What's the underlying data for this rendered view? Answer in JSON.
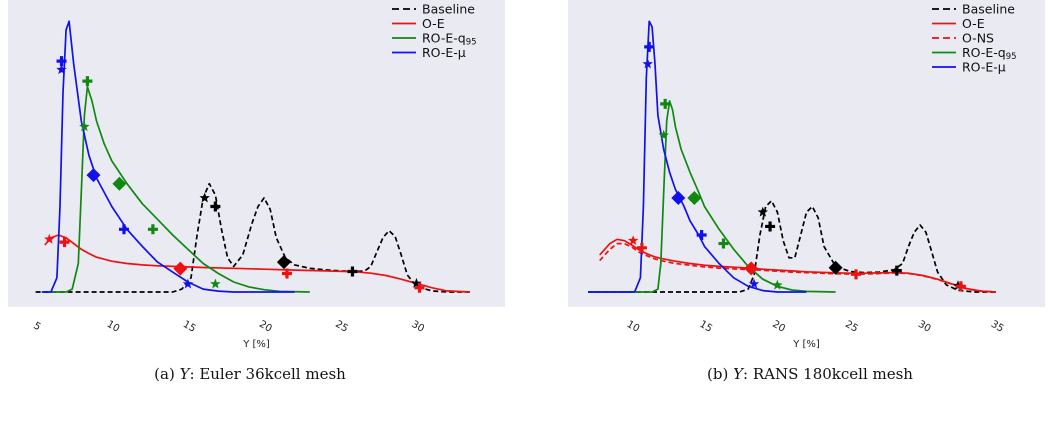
{
  "colors": {
    "background": "#eaeaf2",
    "baseline": "#000000",
    "oe": "#ee1111",
    "onse": "#ee1111",
    "q95": "#118811",
    "mu": "#1111ee"
  },
  "chart_data": [
    {
      "type": "line",
      "caption_prefix": "(a)",
      "caption_var": "Y",
      "caption_text": ": Euler 36kcell mesh",
      "xlabel": "Y [%]",
      "ylabel": "",
      "xlim": [
        4.5,
        34.5
      ],
      "ylim": [
        0,
        1.0
      ],
      "xticks": [
        5,
        10,
        15,
        20,
        25,
        30
      ],
      "grid": false,
      "legend_position": "top-right",
      "series": [
        {
          "name": "Baseline",
          "key": "baseline",
          "dash": "dash",
          "x": [
            5,
            10,
            14,
            14.6,
            15.2,
            15.6,
            16,
            16.4,
            16.8,
            17.2,
            17.6,
            18,
            18.6,
            19.2,
            19.6,
            20,
            20.4,
            20.8,
            21.4,
            22,
            23,
            24,
            25,
            26,
            26.6,
            27,
            27.4,
            27.8,
            28.2,
            28.6,
            29,
            29.4,
            30,
            31,
            32,
            33.5
          ],
          "y": [
            0,
            0,
            0,
            0.01,
            0.05,
            0.2,
            0.33,
            0.38,
            0.34,
            0.22,
            0.12,
            0.09,
            0.13,
            0.24,
            0.3,
            0.33,
            0.29,
            0.19,
            0.12,
            0.095,
            0.083,
            0.078,
            0.074,
            0.072,
            0.074,
            0.09,
            0.14,
            0.19,
            0.215,
            0.195,
            0.13,
            0.06,
            0.02,
            0.004,
            0,
            0
          ],
          "markers": [
            {
              "x": 16.1,
              "y": 0.33,
              "s": "star"
            },
            {
              "x": 16.8,
              "y": 0.3,
              "s": "plus"
            },
            {
              "x": 21.3,
              "y": 0.105,
              "s": "diamond"
            },
            {
              "x": 25.8,
              "y": 0.072,
              "s": "plus"
            },
            {
              "x": 30,
              "y": 0.03,
              "s": "star"
            }
          ]
        },
        {
          "name": "O-E",
          "key": "oe",
          "dash": "solid",
          "x": [
            5.6,
            6,
            6.5,
            7,
            7.5,
            8,
            8.5,
            9,
            10,
            11,
            12,
            13,
            14,
            15,
            16,
            18,
            20,
            22,
            24,
            26,
            27,
            28,
            29,
            30,
            31,
            32,
            33.5
          ],
          "y": [
            0.165,
            0.19,
            0.2,
            0.19,
            0.17,
            0.15,
            0.135,
            0.122,
            0.108,
            0.1,
            0.095,
            0.092,
            0.09,
            0.088,
            0.086,
            0.083,
            0.08,
            0.077,
            0.074,
            0.071,
            0.066,
            0.058,
            0.045,
            0.03,
            0.015,
            0.004,
            0
          ],
          "markers": [
            {
              "x": 5.9,
              "y": 0.185,
              "s": "star"
            },
            {
              "x": 6.9,
              "y": 0.175,
              "s": "plus"
            },
            {
              "x": 14.5,
              "y": 0.082,
              "s": "diamond"
            },
            {
              "x": 21.5,
              "y": 0.065,
              "s": "plus"
            },
            {
              "x": 30.2,
              "y": 0.015,
              "s": "plus"
            }
          ]
        },
        {
          "name": "RO-E-q95",
          "key": "q95",
          "dash": "solid",
          "legend_main": "RO-E-q",
          "legend_sub": "95",
          "x": [
            6,
            7,
            7.4,
            7.8,
            8,
            8.2,
            8.4,
            8.7,
            9,
            9.5,
            10,
            11,
            12,
            13,
            14,
            15,
            16,
            17,
            18,
            19,
            20,
            21,
            23
          ],
          "y": [
            0,
            0,
            0.01,
            0.1,
            0.35,
            0.62,
            0.72,
            0.67,
            0.6,
            0.52,
            0.46,
            0.38,
            0.31,
            0.255,
            0.2,
            0.15,
            0.1,
            0.065,
            0.035,
            0.018,
            0.008,
            0.002,
            0
          ],
          "markers": [
            {
              "x": 8.4,
              "y": 0.74,
              "s": "plus"
            },
            {
              "x": 8.2,
              "y": 0.58,
              "s": "star"
            },
            {
              "x": 10.5,
              "y": 0.38,
              "s": "diamond"
            },
            {
              "x": 12.7,
              "y": 0.22,
              "s": "plus"
            },
            {
              "x": 16.8,
              "y": 0.028,
              "s": "star"
            }
          ]
        },
        {
          "name": "RO-E-μ",
          "key": "mu",
          "dash": "solid",
          "x": [
            5.4,
            6,
            6.4,
            6.6,
            6.8,
            7,
            7.2,
            7.5,
            8,
            8.5,
            9,
            10,
            11,
            12,
            13,
            14,
            15,
            16,
            17,
            18,
            20,
            22
          ],
          "y": [
            0,
            0,
            0.05,
            0.3,
            0.7,
            0.92,
            0.95,
            0.8,
            0.6,
            0.48,
            0.4,
            0.3,
            0.22,
            0.16,
            0.105,
            0.07,
            0.035,
            0.01,
            0.003,
            0,
            0,
            0
          ],
          "markers": [
            {
              "x": 6.7,
              "y": 0.81,
              "s": "plus"
            },
            {
              "x": 6.7,
              "y": 0.78,
              "s": "star"
            },
            {
              "x": 8.8,
              "y": 0.41,
              "s": "diamond"
            },
            {
              "x": 10.8,
              "y": 0.22,
              "s": "plus"
            },
            {
              "x": 15,
              "y": 0.028,
              "s": "star"
            }
          ]
        }
      ]
    },
    {
      "type": "line",
      "caption_prefix": "(b)",
      "caption_var": "Y",
      "caption_text": ": RANS 180kcell mesh",
      "xlabel": "Y [%]",
      "ylabel": "",
      "xlim": [
        7,
        37
      ],
      "ylim": [
        0,
        1.0
      ],
      "xticks": [
        10,
        15,
        20,
        25,
        30,
        35
      ],
      "grid": false,
      "legend_position": "top-right",
      "series": [
        {
          "name": "Baseline",
          "key": "baseline",
          "dash": "dash",
          "x": [
            7,
            15,
            17.4,
            18,
            18.4,
            18.8,
            19.2,
            19.6,
            20,
            20.4,
            20.8,
            21.2,
            21.6,
            22,
            22.4,
            22.8,
            23.2,
            24,
            25,
            26,
            27,
            28,
            28.6,
            29,
            29.4,
            29.8,
            30.2,
            30.6,
            31,
            31.6,
            32.4,
            33.5,
            35
          ],
          "y": [
            0,
            0,
            0,
            0.01,
            0.06,
            0.2,
            0.3,
            0.32,
            0.28,
            0.18,
            0.12,
            0.12,
            0.2,
            0.28,
            0.3,
            0.26,
            0.16,
            0.09,
            0.072,
            0.068,
            0.07,
            0.078,
            0.1,
            0.16,
            0.21,
            0.235,
            0.21,
            0.14,
            0.07,
            0.025,
            0.006,
            0,
            0
          ],
          "markers": [
            {
              "x": 19,
              "y": 0.28,
              "s": "star"
            },
            {
              "x": 19.5,
              "y": 0.23,
              "s": "plus"
            },
            {
              "x": 24,
              "y": 0.085,
              "s": "diamond"
            },
            {
              "x": 28.2,
              "y": 0.075,
              "s": "plus"
            },
            {
              "x": 32.4,
              "y": 0.022,
              "s": "star"
            }
          ]
        },
        {
          "name": "O-E",
          "key": "oe",
          "dash": "solid",
          "x": [
            7.8,
            8.5,
            9,
            9.5,
            10,
            10.5,
            11,
            11.5,
            12,
            13,
            14,
            15,
            16,
            17,
            18,
            19,
            20,
            21,
            22,
            23,
            24,
            25,
            26,
            27,
            28,
            29,
            30,
            31,
            32,
            33,
            34,
            35
          ],
          "y": [
            0.13,
            0.17,
            0.185,
            0.18,
            0.165,
            0.148,
            0.135,
            0.125,
            0.118,
            0.108,
            0.1,
            0.094,
            0.09,
            0.087,
            0.084,
            0.08,
            0.077,
            0.074,
            0.071,
            0.069,
            0.067,
            0.066,
            0.066,
            0.067,
            0.068,
            0.066,
            0.058,
            0.045,
            0.028,
            0.012,
            0.003,
            0
          ],
          "markers": [
            {
              "x": 10.1,
              "y": 0.18,
              "s": "star"
            },
            {
              "x": 10.7,
              "y": 0.155,
              "s": "plus"
            },
            {
              "x": 18.2,
              "y": 0.083,
              "s": "diamond"
            },
            {
              "x": 25.4,
              "y": 0.062,
              "s": "plus"
            },
            {
              "x": 32.6,
              "y": 0.02,
              "s": "plus"
            }
          ]
        },
        {
          "name": "O-NS",
          "key": "onse",
          "dash": "dash",
          "x": [
            7.8,
            8.5,
            9,
            9.5,
            10,
            10.5,
            11,
            11.5,
            12,
            13,
            14,
            15,
            16,
            17,
            18,
            19,
            20,
            21,
            22,
            23,
            24,
            25,
            26,
            27,
            28,
            29,
            30,
            31,
            32,
            33,
            34,
            35
          ],
          "y": [
            0.11,
            0.15,
            0.17,
            0.17,
            0.158,
            0.14,
            0.128,
            0.118,
            0.11,
            0.1,
            0.094,
            0.088,
            0.084,
            0.081,
            0.079,
            0.076,
            0.073,
            0.07,
            0.068,
            0.066,
            0.064,
            0.063,
            0.063,
            0.065,
            0.067,
            0.065,
            0.057,
            0.044,
            0.027,
            0.011,
            0.003,
            0
          ],
          "markers": []
        },
        {
          "name": "RO-E-q95",
          "key": "q95",
          "dash": "solid",
          "legend_main": "RO-E-q",
          "legend_sub": "95",
          "x": [
            7,
            11.4,
            11.8,
            12,
            12.2,
            12.4,
            12.6,
            12.8,
            13,
            13.4,
            14,
            14.6,
            15,
            16,
            17,
            18,
            19,
            20,
            21,
            22,
            24
          ],
          "y": [
            0,
            0,
            0.01,
            0.1,
            0.35,
            0.6,
            0.67,
            0.64,
            0.58,
            0.5,
            0.42,
            0.35,
            0.3,
            0.22,
            0.15,
            0.09,
            0.045,
            0.02,
            0.007,
            0.002,
            0
          ],
          "markers": [
            {
              "x": 12.3,
              "y": 0.66,
              "s": "plus"
            },
            {
              "x": 12.2,
              "y": 0.55,
              "s": "star"
            },
            {
              "x": 14.3,
              "y": 0.33,
              "s": "diamond"
            },
            {
              "x": 16.3,
              "y": 0.17,
              "s": "plus"
            },
            {
              "x": 20,
              "y": 0.024,
              "s": "star"
            }
          ]
        },
        {
          "name": "RO-E-μ",
          "key": "mu",
          "dash": "solid",
          "x": [
            7,
            10.2,
            10.6,
            10.8,
            11,
            11.2,
            11.4,
            11.6,
            11.8,
            12.2,
            12.6,
            13,
            13.6,
            14,
            14.6,
            15,
            16,
            17,
            18,
            19,
            20,
            22
          ],
          "y": [
            0,
            0,
            0.05,
            0.3,
            0.75,
            0.95,
            0.93,
            0.8,
            0.62,
            0.5,
            0.42,
            0.36,
            0.3,
            0.25,
            0.2,
            0.16,
            0.1,
            0.05,
            0.02,
            0.005,
            0,
            0
          ],
          "markers": [
            {
              "x": 11.2,
              "y": 0.86,
              "s": "plus"
            },
            {
              "x": 11.1,
              "y": 0.8,
              "s": "star"
            },
            {
              "x": 13.2,
              "y": 0.33,
              "s": "diamond"
            },
            {
              "x": 14.8,
              "y": 0.2,
              "s": "plus"
            },
            {
              "x": 18.4,
              "y": 0.028,
              "s": "star"
            }
          ]
        }
      ]
    }
  ]
}
